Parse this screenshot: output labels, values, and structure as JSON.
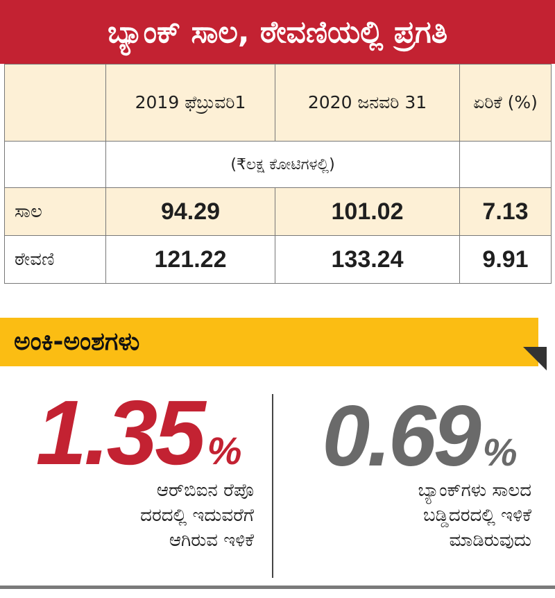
{
  "title": "ಬ್ಯಾಂಕ್ ಸಾಲ, ಠೇವಣಿಯಲ್ಲಿ ಪ್ರಗತಿ",
  "table": {
    "columns": [
      "",
      "2019 ಫೆಬ್ರುವರಿ1",
      "2020 ಜನವರಿ 31",
      "ಏರಿಕೆ (%)"
    ],
    "unit_note": "(₹ಲಕ್ಷ ಕೋಟಿಗಳಲ್ಲಿ)",
    "rows": [
      {
        "label": "ಸಾಲ",
        "values": [
          "94.29",
          "101.02",
          "7.13"
        ]
      },
      {
        "label": "ಠೇವಣಿ",
        "values": [
          "121.22",
          "133.24",
          "9.91"
        ]
      }
    ]
  },
  "facts": {
    "heading": "ಅಂಕಿ-ಅಂಶಗಳು",
    "items": [
      {
        "value": "1.35",
        "unit": "%",
        "color": "#c32232",
        "lines": [
          "ಆರ್‌ಬಿಐನ ರೆಪೊ",
          "ದರದಲ್ಲಿ ಇದುವರೆಗೆ",
          "ಆಗಿರುವ ಇಳಿಕೆ"
        ]
      },
      {
        "value": "0.69",
        "unit": "%",
        "color": "#6a6a6a",
        "lines": [
          "ಬ್ಯಾಂಕ್‌ಗಳು ಸಾಲದ",
          "ಬಡ್ಡಿದರದಲ್ಲಿ ಇಳಿಕೆ",
          "ಮಾಡಿರುವುದು"
        ]
      }
    ]
  }
}
